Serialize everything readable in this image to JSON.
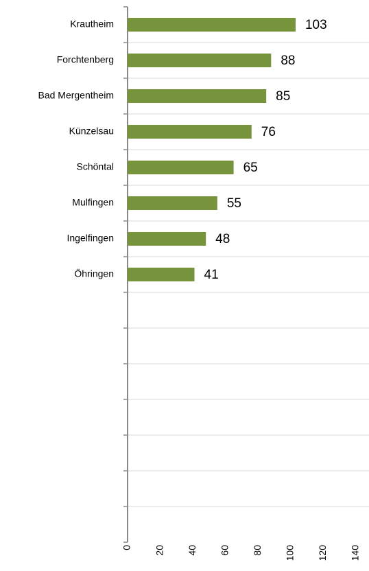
{
  "chart_data": {
    "type": "barh",
    "categories": [
      "Krautheim",
      "Forchtenberg",
      "Bad Mergentheim",
      "Künzelsau",
      "Schöntal",
      "Mulfingen",
      "Ingelfingen",
      "Öhringen",
      null,
      null,
      null,
      null,
      null,
      null,
      null
    ],
    "values": [
      103,
      88,
      85,
      76,
      65,
      55,
      48,
      41,
      null,
      null,
      null,
      null,
      null,
      null,
      null
    ],
    "color": "#77933c",
    "xlim": [
      0,
      140
    ],
    "xticks": [
      0,
      20,
      40,
      60,
      80,
      100,
      120,
      140
    ],
    "grid": true
  }
}
